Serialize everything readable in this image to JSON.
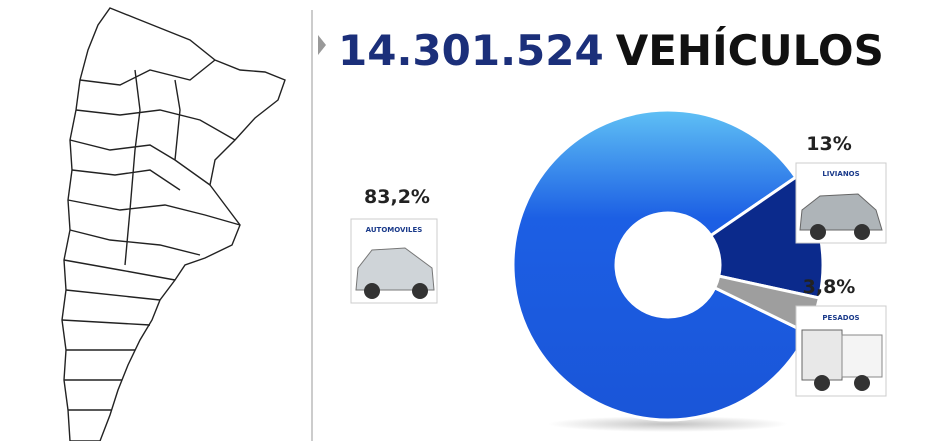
{
  "chart_data": {
    "type": "pie",
    "donut": true,
    "title": [
      "14.301.524",
      "VEHÍCULOS"
    ],
    "categories": [
      "AUTOMOVILES",
      "LIVIANOS",
      "PESADOS"
    ],
    "values": [
      83.2,
      13,
      3.8
    ],
    "value_labels": [
      "83,2%",
      "13%",
      "3,8%"
    ],
    "colors": [
      "#1c5fe4",
      "#0b2a8c",
      "#9e9e9e"
    ]
  }
}
